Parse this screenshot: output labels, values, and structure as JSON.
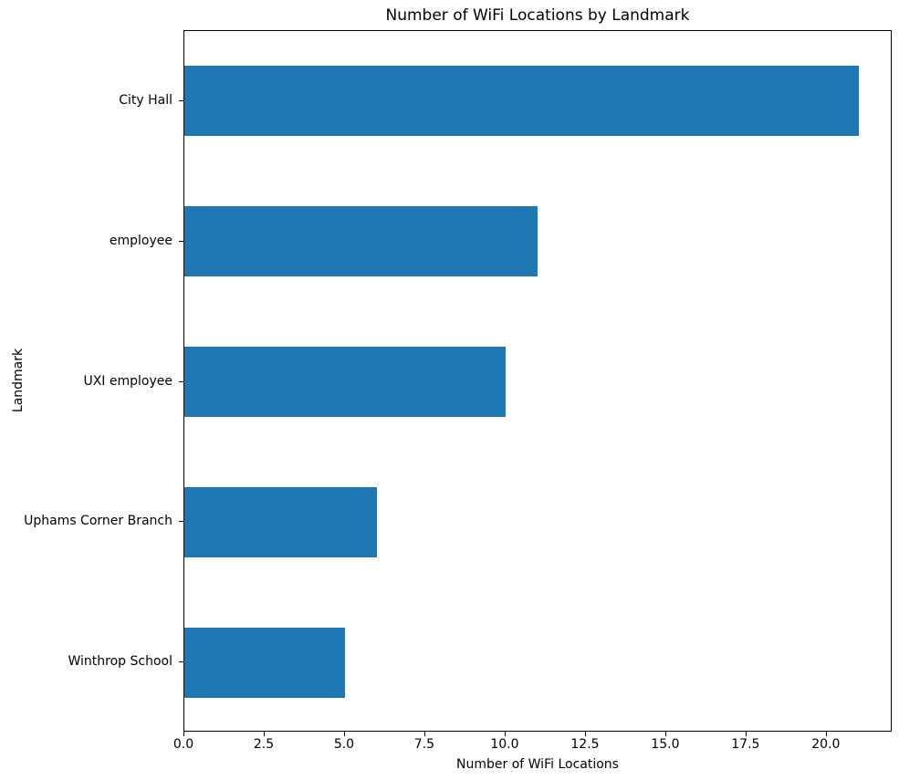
{
  "chart_data": {
    "type": "bar",
    "orientation": "horizontal",
    "title": "Number of WiFi Locations by Landmark",
    "xlabel": "Number of WiFi Locations",
    "ylabel": "Landmark",
    "categories": [
      "City Hall",
      "employee",
      "UXI employee",
      "Uphams Corner Branch",
      "Winthrop School"
    ],
    "values": [
      21,
      11,
      10,
      6,
      5
    ],
    "xlim": [
      0,
      22.05
    ],
    "xtick_labels": [
      "0.0",
      "2.5",
      "5.0",
      "7.5",
      "10.0",
      "12.5",
      "15.0",
      "17.5",
      "20.0"
    ],
    "xtick_values": [
      0,
      2.5,
      5,
      7.5,
      10,
      12.5,
      15,
      17.5,
      20
    ],
    "bar_color": "#1f77b4",
    "bar_width_fraction": 0.5,
    "grid": false,
    "legend": false
  }
}
